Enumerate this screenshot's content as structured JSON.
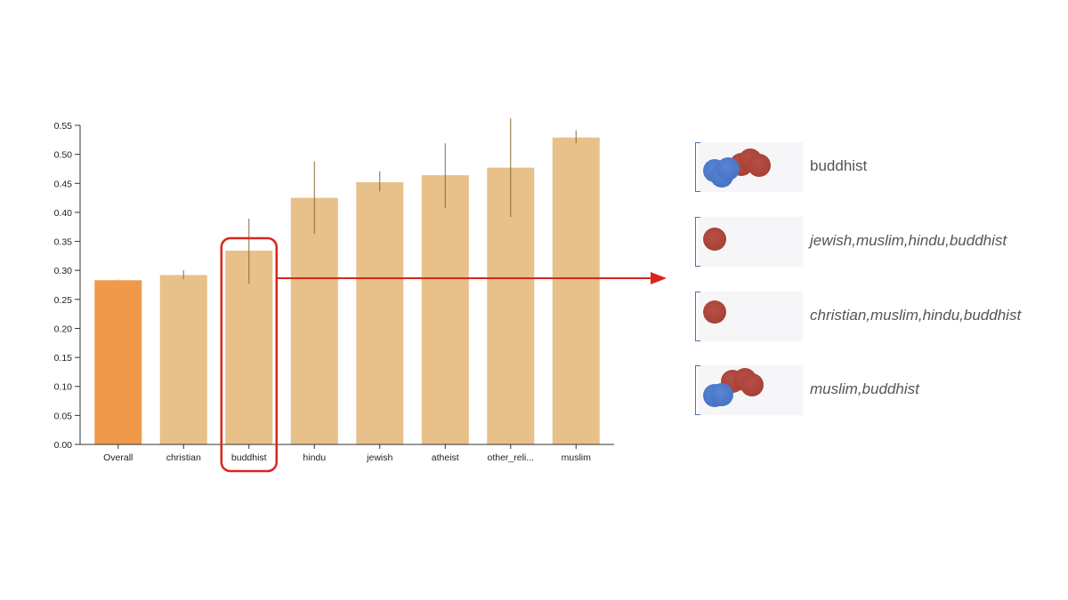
{
  "chart_data": {
    "type": "bar",
    "categories": [
      "Overall",
      "christian",
      "buddhist",
      "hindu",
      "jewish",
      "atheist",
      "other_reli...",
      "muslim"
    ],
    "values": [
      0.283,
      0.292,
      0.334,
      0.425,
      0.452,
      0.464,
      0.477,
      0.529
    ],
    "error_low": [
      0.283,
      0.285,
      0.277,
      0.363,
      0.436,
      0.407,
      0.392,
      0.519
    ],
    "error_high": [
      0.284,
      0.3,
      0.389,
      0.488,
      0.471,
      0.519,
      0.562,
      0.541
    ],
    "ylim": [
      0,
      0.55
    ],
    "yticks": [
      "0.00",
      "0.05",
      "0.10",
      "0.15",
      "0.20",
      "0.25",
      "0.30",
      "0.35",
      "0.40",
      "0.45",
      "0.50",
      "0.55"
    ],
    "title": "",
    "xlabel": "",
    "ylabel": "",
    "grid": false,
    "colors": {
      "highlight": "#f0994a",
      "bar": "#e8c08a",
      "error": "#8b6a3a",
      "annotation": "#d9261c"
    },
    "highlighted_category": "buddhist"
  },
  "groups": [
    {
      "label": "buddhist",
      "italic": false,
      "dots": [
        "blue",
        "blue",
        "blue",
        "red",
        "red",
        "red"
      ]
    },
    {
      "label": "jewish,muslim,hindu,buddhist",
      "italic": true,
      "dots": [
        "red"
      ]
    },
    {
      "label": "christian,muslim,hindu,buddhist",
      "italic": true,
      "dots": [
        "red"
      ]
    },
    {
      "label": "muslim,buddhist",
      "italic": true,
      "dots": [
        "red",
        "red",
        "red",
        "blue",
        "blue"
      ]
    }
  ],
  "dot_colors": {
    "red": "#a8443a",
    "blue": "#4a76c8"
  }
}
